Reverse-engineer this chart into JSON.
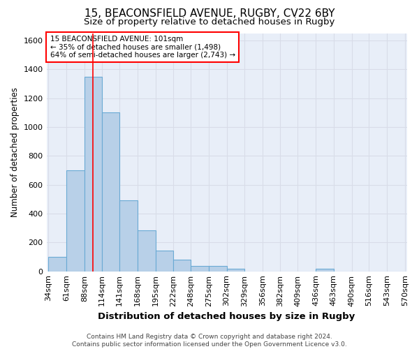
{
  "title1": "15, BEACONSFIELD AVENUE, RUGBY, CV22 6BY",
  "title2": "Size of property relative to detached houses in Rugby",
  "xlabel": "Distribution of detached houses by size in Rugby",
  "ylabel": "Number of detached properties",
  "footer1": "Contains HM Land Registry data © Crown copyright and database right 2024.",
  "footer2": "Contains public sector information licensed under the Open Government Licence v3.0.",
  "annotation_line1": "15 BEACONSFIELD AVENUE: 101sqm",
  "annotation_line2": "← 35% of detached houses are smaller (1,498)",
  "annotation_line3": "64% of semi-detached houses are larger (2,743) →",
  "bar_edges": [
    34,
    61,
    88,
    114,
    141,
    168,
    195,
    222,
    248,
    275,
    302,
    329,
    356,
    382,
    409,
    436,
    463,
    490,
    516,
    543,
    570
  ],
  "bar_heights": [
    100,
    700,
    1350,
    1100,
    490,
    285,
    143,
    80,
    35,
    35,
    18,
    0,
    0,
    0,
    0,
    18,
    0,
    0,
    0,
    0
  ],
  "bar_color": "#b8d0e8",
  "bar_edge_color": "#6aaad4",
  "bar_linewidth": 0.8,
  "red_line_x": 101,
  "ylim": [
    0,
    1650
  ],
  "yticks": [
    0,
    200,
    400,
    600,
    800,
    1000,
    1200,
    1400,
    1600
  ],
  "xtick_labels": [
    "34sqm",
    "61sqm",
    "88sqm",
    "114sqm",
    "141sqm",
    "168sqm",
    "195sqm",
    "222sqm",
    "248sqm",
    "275sqm",
    "302sqm",
    "329sqm",
    "356sqm",
    "382sqm",
    "409sqm",
    "436sqm",
    "463sqm",
    "490sqm",
    "516sqm",
    "543sqm",
    "570sqm"
  ],
  "grid_color": "#d8dce8",
  "background_color": "#ffffff",
  "plot_bg_color": "#e8eef8",
  "annotation_box_color": "white",
  "annotation_box_edge": "red",
  "title1_fontsize": 11,
  "title2_fontsize": 9.5,
  "xlabel_fontsize": 9.5,
  "ylabel_fontsize": 8.5,
  "footer_fontsize": 6.5,
  "tick_fontsize": 8,
  "annot_fontsize": 7.5
}
